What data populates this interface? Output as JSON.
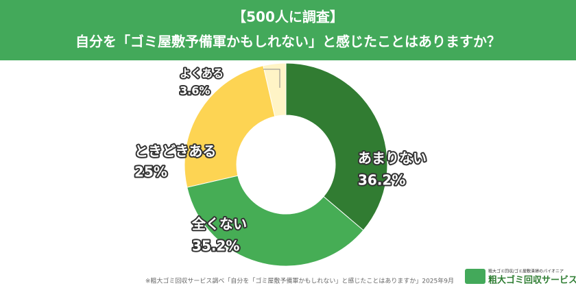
{
  "chart_data": {
    "type": "donut",
    "title": "【500人に調査】",
    "subtitle": "自分を「ゴミ屋敷予備軍かもしれない」と感じたことはありますか？",
    "categories": [
      "あまりない",
      "全くない",
      "ときどきある",
      "よくある"
    ],
    "values": [
      36.2,
      35.2,
      25,
      3.6
    ],
    "value_labels": [
      "36.2%",
      "35.2%",
      "25%",
      "3.6%"
    ],
    "colors": [
      "#317c32",
      "#46ad55",
      "#fdd453",
      "#fff4c6"
    ],
    "source": "※粗大ゴミ回収サービス調べ「自分を「ゴミ屋敷予備軍かもしれない」と感じたことはありますか」2025年9月",
    "logo": {
      "tagline": "粗大ゴミ回収/ゴミ屋敷清掃のパイオニア",
      "name": "粗大ゴミ回収サービス"
    }
  }
}
